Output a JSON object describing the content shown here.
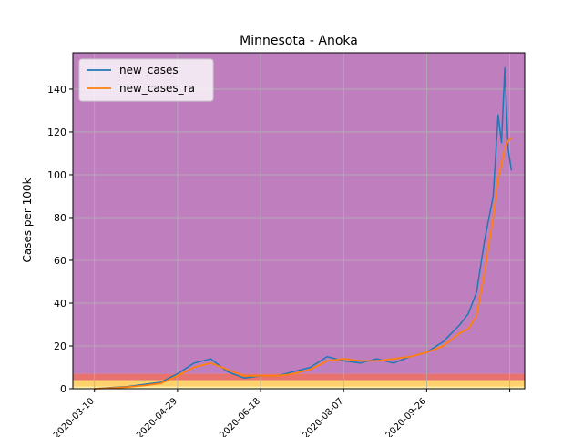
{
  "chart_data": {
    "type": "line",
    "title": "Minnesota - Anoka",
    "xlabel": "",
    "ylabel": "Cases per 100k",
    "x_tick_labels": [
      "2020-03-10",
      "2020-04-29",
      "2020-06-18",
      "2020-08-07",
      "2020-09-26",
      ""
    ],
    "xlim": [
      "2020-02-26",
      "2020-11-24"
    ],
    "ylim": [
      0,
      157
    ],
    "y_ticks": [
      0,
      20,
      40,
      60,
      80,
      100,
      120,
      140
    ],
    "grid": true,
    "legend_position": "top-left",
    "risk_bands": [
      {
        "from": 0,
        "to": 1,
        "color": "#fff2a8"
      },
      {
        "from": 1,
        "to": 4,
        "color": "#fdd16b"
      },
      {
        "from": 4,
        "to": 7,
        "color": "#e8736e"
      },
      {
        "from": 7,
        "to": 157,
        "color": "#bf7fbf"
      }
    ],
    "x": [
      "2020-03-10",
      "2020-03-20",
      "2020-03-30",
      "2020-04-09",
      "2020-04-19",
      "2020-04-29",
      "2020-05-09",
      "2020-05-19",
      "2020-05-29",
      "2020-06-08",
      "2020-06-18",
      "2020-06-28",
      "2020-07-08",
      "2020-07-18",
      "2020-07-28",
      "2020-08-07",
      "2020-08-17",
      "2020-08-27",
      "2020-09-06",
      "2020-09-16",
      "2020-09-26",
      "2020-10-06",
      "2020-10-16",
      "2020-10-21",
      "2020-10-26",
      "2020-10-31",
      "2020-11-05",
      "2020-11-08",
      "2020-11-10",
      "2020-11-12",
      "2020-11-14",
      "2020-11-16"
    ],
    "series": [
      {
        "name": "new_cases",
        "color": "#1f77b4",
        "values": [
          0,
          0.5,
          1,
          2,
          3,
          7,
          12,
          14,
          8,
          5,
          6,
          6,
          8,
          10,
          15,
          13,
          12,
          14,
          12,
          15,
          17,
          22,
          30,
          35,
          45,
          70,
          90,
          128,
          115,
          150,
          112,
          102
        ]
      },
      {
        "name": "new_cases_ra",
        "color": "#ff7f0e",
        "values": [
          0,
          0.3,
          0.8,
          1.5,
          2.5,
          6,
          10,
          12,
          9,
          6,
          6,
          6,
          7,
          9,
          13,
          14,
          13,
          13,
          14,
          15,
          17,
          20,
          26,
          28,
          34,
          55,
          80,
          98,
          105,
          112,
          116,
          117
        ]
      }
    ]
  }
}
